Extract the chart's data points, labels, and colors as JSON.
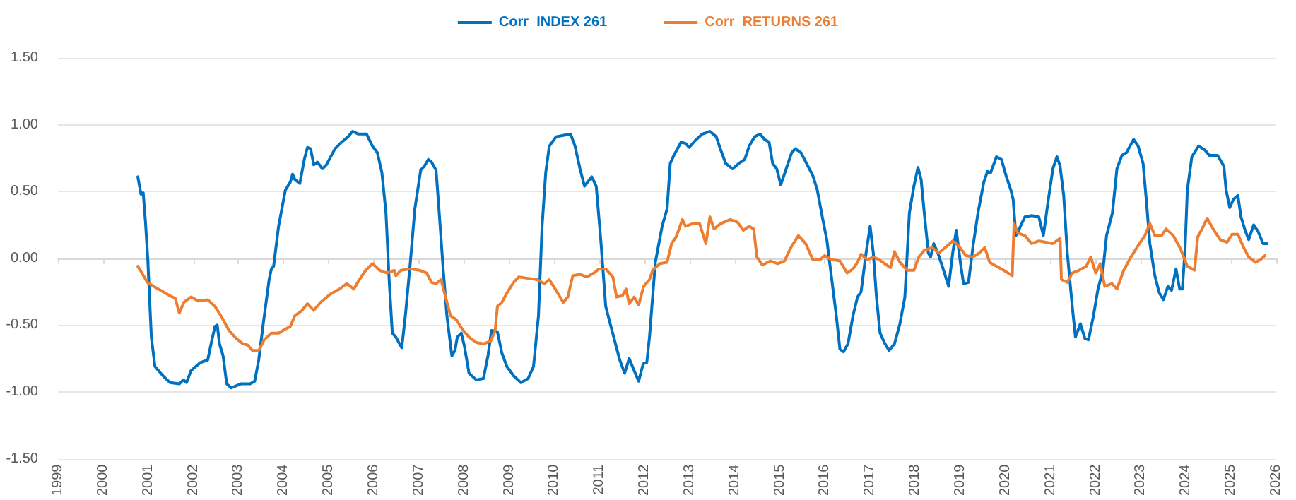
{
  "chart_data": {
    "type": "line",
    "xlim": [
      1999,
      2026
    ],
    "xticks": [
      1999,
      2000,
      2001,
      2002,
      2003,
      2004,
      2005,
      2006,
      2007,
      2008,
      2009,
      2010,
      2011,
      2012,
      2013,
      2014,
      2015,
      2016,
      2017,
      2018,
      2019,
      2020,
      2021,
      2022,
      2023,
      2024,
      2025,
      2026
    ],
    "ylim": [
      -1.5,
      1.5
    ],
    "yticks": [
      {
        "value": -1.5,
        "label": "-1.50"
      },
      {
        "value": -1,
        "label": "-1.00"
      },
      {
        "value": -0.5,
        "label": "-0.50"
      },
      {
        "value": 0,
        "label": "0.00"
      },
      {
        "value": 0.5,
        "label": "0.50"
      },
      {
        "value": 1,
        "label": "1.00"
      },
      {
        "value": 1.5,
        "label": "1.50"
      }
    ],
    "grid": "y",
    "legend": "top",
    "marker": "none",
    "line_style": "solid",
    "series": [
      {
        "name": "Corr  INDEX 261",
        "color": "#0070c0",
        "x": [
          2000.77,
          2000.84,
          2000.89,
          2000.94,
          2000.99,
          2001.07,
          2001.15,
          2001.33,
          2001.48,
          2001.69,
          2001.78,
          2001.85,
          2001.95,
          2002.16,
          2002.32,
          2002.4,
          2002.48,
          2002.53,
          2002.58,
          2002.66,
          2002.74,
          2002.84,
          2003.05,
          2003.26,
          2003.36,
          2003.45,
          2003.55,
          2003.68,
          2003.73,
          2003.78,
          2003.89,
          2004.04,
          2004.15,
          2004.2,
          2004.25,
          2004.36,
          2004.46,
          2004.53,
          2004.6,
          2004.67,
          2004.75,
          2004.86,
          2004.95,
          2005.14,
          2005.29,
          2005.43,
          2005.53,
          2005.66,
          2005.84,
          2005.97,
          2006.08,
          2006.18,
          2006.27,
          2006.34,
          2006.41,
          2006.49,
          2006.62,
          2006.7,
          2006.81,
          2006.91,
          2007.04,
          2007.12,
          2007.21,
          2007.28,
          2007.38,
          2007.45,
          2007.54,
          2007.62,
          2007.73,
          2007.8,
          2007.85,
          2007.94,
          2008.01,
          2008.11,
          2008.27,
          2008.43,
          2008.53,
          2008.61,
          2008.74,
          2008.84,
          2008.95,
          2009.1,
          2009.26,
          2009.42,
          2009.54,
          2009.65,
          2009.73,
          2009.81,
          2009.89,
          2010.04,
          2010.2,
          2010.36,
          2010.46,
          2010.57,
          2010.67,
          2010.83,
          2010.93,
          2011.03,
          2011.14,
          2011.24,
          2011.45,
          2011.56,
          2011.66,
          2011.77,
          2011.87,
          2011.97,
          2012.05,
          2012.11,
          2012.24,
          2012.39,
          2012.5,
          2012.57,
          2012.65,
          2012.81,
          2012.91,
          2012.99,
          2013.12,
          2013.28,
          2013.45,
          2013.59,
          2013.69,
          2013.8,
          2013.95,
          2014.09,
          2014.22,
          2014.32,
          2014.44,
          2014.56,
          2014.66,
          2014.76,
          2014.84,
          2014.93,
          2015.02,
          2015.14,
          2015.26,
          2015.34,
          2015.47,
          2015.59,
          2015.73,
          2015.83,
          2015.94,
          2016.04,
          2016.15,
          2016.25,
          2016.33,
          2016.41,
          2016.51,
          2016.62,
          2016.72,
          2016.8,
          2016.91,
          2017.0,
          2017.07,
          2017.14,
          2017.22,
          2017.33,
          2017.42,
          2017.54,
          2017.66,
          2017.77,
          2017.87,
          2017.97,
          2018.06,
          2018.13,
          2018.2,
          2018.29,
          2018.34,
          2018.41,
          2018.5,
          2018.6,
          2018.74,
          2018.83,
          2018.91,
          2019.0,
          2019.07,
          2019.18,
          2019.28,
          2019.39,
          2019.52,
          2019.6,
          2019.67,
          2019.8,
          2019.91,
          2020.02,
          2020.12,
          2020.17,
          2020.23,
          2020.29,
          2020.43,
          2020.58,
          2020.74,
          2020.84,
          2020.95,
          2021.05,
          2021.14,
          2021.21,
          2021.29,
          2021.37,
          2021.48,
          2021.55,
          2021.66,
          2021.76,
          2021.84,
          2021.95,
          2022.05,
          2022.16,
          2022.24,
          2022.37,
          2022.47,
          2022.58,
          2022.68,
          2022.84,
          2022.94,
          2023.05,
          2023.12,
          2023.2,
          2023.31,
          2023.41,
          2023.5,
          2023.6,
          2023.68,
          2023.78,
          2023.86,
          2023.92,
          2023.98,
          2024.03,
          2024.13,
          2024.28,
          2024.42,
          2024.52,
          2024.7,
          2024.84,
          2024.89,
          2024.97,
          2025.05,
          2025.15,
          2025.22,
          2025.31,
          2025.39,
          2025.5,
          2025.6,
          2025.71,
          2025.8
        ],
        "values": [
          0.61,
          0.48,
          0.49,
          0.27,
          0.0,
          -0.59,
          -0.81,
          -0.88,
          -0.93,
          -0.94,
          -0.91,
          -0.93,
          -0.84,
          -0.78,
          -0.76,
          -0.63,
          -0.51,
          -0.5,
          -0.64,
          -0.73,
          -0.94,
          -0.97,
          -0.94,
          -0.94,
          -0.92,
          -0.76,
          -0.49,
          -0.16,
          -0.08,
          -0.06,
          0.24,
          0.51,
          0.57,
          0.63,
          0.59,
          0.56,
          0.74,
          0.83,
          0.82,
          0.7,
          0.72,
          0.67,
          0.7,
          0.82,
          0.87,
          0.91,
          0.95,
          0.93,
          0.93,
          0.84,
          0.79,
          0.64,
          0.34,
          -0.16,
          -0.56,
          -0.59,
          -0.67,
          -0.43,
          -0.03,
          0.37,
          0.66,
          0.69,
          0.74,
          0.72,
          0.66,
          0.34,
          -0.09,
          -0.43,
          -0.73,
          -0.69,
          -0.59,
          -0.56,
          -0.66,
          -0.86,
          -0.91,
          -0.9,
          -0.73,
          -0.54,
          -0.55,
          -0.71,
          -0.81,
          -0.88,
          -0.93,
          -0.9,
          -0.81,
          -0.43,
          0.24,
          0.64,
          0.84,
          0.91,
          0.92,
          0.93,
          0.84,
          0.67,
          0.54,
          0.61,
          0.54,
          0.14,
          -0.36,
          -0.49,
          -0.76,
          -0.86,
          -0.75,
          -0.84,
          -0.92,
          -0.79,
          -0.78,
          -0.59,
          -0.03,
          0.24,
          0.37,
          0.71,
          0.77,
          0.87,
          0.86,
          0.83,
          0.88,
          0.93,
          0.95,
          0.91,
          0.81,
          0.71,
          0.67,
          0.71,
          0.74,
          0.84,
          0.91,
          0.93,
          0.89,
          0.87,
          0.71,
          0.67,
          0.55,
          0.67,
          0.79,
          0.82,
          0.79,
          0.71,
          0.62,
          0.51,
          0.31,
          0.14,
          -0.16,
          -0.43,
          -0.68,
          -0.7,
          -0.64,
          -0.43,
          -0.29,
          -0.25,
          0.04,
          0.24,
          0.04,
          -0.29,
          -0.56,
          -0.64,
          -0.69,
          -0.64,
          -0.49,
          -0.29,
          0.34,
          0.54,
          0.68,
          0.59,
          0.34,
          0.04,
          0.01,
          0.11,
          0.04,
          -0.06,
          -0.21,
          0.04,
          0.21,
          -0.03,
          -0.19,
          -0.18,
          0.09,
          0.34,
          0.57,
          0.65,
          0.64,
          0.76,
          0.74,
          0.61,
          0.51,
          0.44,
          0.17,
          0.21,
          0.31,
          0.32,
          0.31,
          0.17,
          0.44,
          0.67,
          0.76,
          0.69,
          0.47,
          0.04,
          -0.36,
          -0.59,
          -0.49,
          -0.6,
          -0.61,
          -0.43,
          -0.23,
          -0.09,
          0.17,
          0.34,
          0.67,
          0.77,
          0.79,
          0.89,
          0.84,
          0.71,
          0.44,
          0.11,
          -0.13,
          -0.26,
          -0.31,
          -0.21,
          -0.24,
          -0.08,
          -0.23,
          -0.23,
          0.07,
          0.51,
          0.76,
          0.84,
          0.81,
          0.77,
          0.77,
          0.69,
          0.51,
          0.38,
          0.44,
          0.47,
          0.31,
          0.21,
          0.14,
          0.25,
          0.2,
          0.11,
          0.11
        ]
      },
      {
        "name": "Corr  RETURNS 261",
        "color": "#ed7d31",
        "x": [
          2000.77,
          2000.86,
          2000.98,
          2001.12,
          2001.28,
          2001.48,
          2001.6,
          2001.69,
          2001.79,
          2001.95,
          2002.11,
          2002.32,
          2002.48,
          2002.63,
          2002.79,
          2002.95,
          2003.1,
          2003.21,
          2003.31,
          2003.45,
          2003.57,
          2003.73,
          2003.89,
          2004.04,
          2004.15,
          2004.25,
          2004.41,
          2004.53,
          2004.67,
          2004.82,
          2005.03,
          2005.24,
          2005.4,
          2005.56,
          2005.68,
          2005.82,
          2005.97,
          2006.13,
          2006.29,
          2006.45,
          2006.49,
          2006.6,
          2006.81,
          2007.02,
          2007.17,
          2007.28,
          2007.38,
          2007.49,
          2007.59,
          2007.7,
          2007.83,
          2007.96,
          2008.11,
          2008.27,
          2008.43,
          2008.59,
          2008.69,
          2008.74,
          2008.84,
          2008.95,
          2009.1,
          2009.21,
          2009.42,
          2009.62,
          2009.78,
          2009.89,
          2010.04,
          2010.2,
          2010.3,
          2010.41,
          2010.57,
          2010.72,
          2010.88,
          2010.99,
          2011.14,
          2011.3,
          2011.38,
          2011.51,
          2011.59,
          2011.66,
          2011.77,
          2011.87,
          2011.98,
          2012.11,
          2012.18,
          2012.34,
          2012.5,
          2012.6,
          2012.7,
          2012.84,
          2012.91,
          2013.07,
          2013.22,
          2013.36,
          2013.45,
          2013.54,
          2013.69,
          2013.9,
          2014.06,
          2014.19,
          2014.32,
          2014.42,
          2014.49,
          2014.61,
          2014.79,
          2014.95,
          2015.1,
          2015.26,
          2015.41,
          2015.57,
          2015.73,
          2015.89,
          2015.99,
          2016.15,
          2016.33,
          2016.49,
          2016.62,
          2016.72,
          2016.8,
          2016.93,
          2017.09,
          2017.24,
          2017.45,
          2017.54,
          2017.66,
          2017.82,
          2017.97,
          2018.08,
          2018.2,
          2018.37,
          2018.52,
          2018.7,
          2018.83,
          2018.97,
          2019.12,
          2019.28,
          2019.42,
          2019.54,
          2019.65,
          2019.8,
          2019.96,
          2020.15,
          2020.19,
          2020.27,
          2020.43,
          2020.58,
          2020.74,
          2020.89,
          2021.05,
          2021.21,
          2021.24,
          2021.37,
          2021.48,
          2021.63,
          2021.79,
          2021.89,
          2022.0,
          2022.1,
          2022.2,
          2022.36,
          2022.47,
          2022.62,
          2022.78,
          2022.93,
          2023.09,
          2023.2,
          2023.31,
          2023.46,
          2023.56,
          2023.72,
          2023.88,
          2024.03,
          2024.19,
          2024.26,
          2024.34,
          2024.47,
          2024.6,
          2024.76,
          2024.91,
          2025.02,
          2025.15,
          2025.28,
          2025.39,
          2025.54,
          2025.65,
          2025.75
        ],
        "values": [
          -0.06,
          -0.11,
          -0.18,
          -0.21,
          -0.24,
          -0.28,
          -0.3,
          -0.41,
          -0.33,
          -0.29,
          -0.32,
          -0.31,
          -0.36,
          -0.44,
          -0.54,
          -0.6,
          -0.64,
          -0.65,
          -0.69,
          -0.69,
          -0.61,
          -0.56,
          -0.56,
          -0.53,
          -0.51,
          -0.43,
          -0.39,
          -0.34,
          -0.39,
          -0.33,
          -0.27,
          -0.23,
          -0.19,
          -0.23,
          -0.16,
          -0.09,
          -0.04,
          -0.09,
          -0.11,
          -0.09,
          -0.13,
          -0.09,
          -0.08,
          -0.09,
          -0.11,
          -0.18,
          -0.19,
          -0.16,
          -0.29,
          -0.43,
          -0.46,
          -0.53,
          -0.59,
          -0.63,
          -0.64,
          -0.62,
          -0.54,
          -0.36,
          -0.33,
          -0.26,
          -0.18,
          -0.14,
          -0.15,
          -0.16,
          -0.19,
          -0.16,
          -0.24,
          -0.33,
          -0.29,
          -0.13,
          -0.12,
          -0.14,
          -0.11,
          -0.08,
          -0.08,
          -0.14,
          -0.29,
          -0.28,
          -0.23,
          -0.34,
          -0.29,
          -0.35,
          -0.21,
          -0.16,
          -0.09,
          -0.04,
          -0.03,
          0.11,
          0.16,
          0.29,
          0.24,
          0.26,
          0.26,
          0.11,
          0.31,
          0.22,
          0.26,
          0.29,
          0.27,
          0.21,
          0.24,
          0.22,
          0.01,
          -0.05,
          -0.02,
          -0.04,
          -0.02,
          0.09,
          0.17,
          0.11,
          -0.01,
          -0.01,
          0.02,
          -0.01,
          -0.02,
          -0.11,
          -0.08,
          -0.03,
          0.03,
          -0.01,
          0.01,
          -0.02,
          -0.07,
          0.05,
          -0.03,
          -0.09,
          -0.09,
          0.01,
          0.06,
          0.08,
          0.04,
          0.09,
          0.13,
          0.09,
          0.02,
          0.01,
          0.04,
          0.08,
          -0.03,
          -0.06,
          -0.09,
          -0.13,
          0.26,
          0.19,
          0.17,
          0.11,
          0.13,
          0.12,
          0.11,
          0.15,
          -0.16,
          -0.18,
          -0.11,
          -0.09,
          -0.06,
          0.01,
          -0.11,
          -0.04,
          -0.21,
          -0.19,
          -0.23,
          -0.09,
          0.01,
          0.09,
          0.17,
          0.26,
          0.17,
          0.17,
          0.22,
          0.17,
          0.07,
          -0.06,
          -0.09,
          0.16,
          0.21,
          0.3,
          0.22,
          0.14,
          0.12,
          0.18,
          0.18,
          0.08,
          0.01,
          -0.03,
          -0.01,
          0.02
        ]
      }
    ]
  }
}
